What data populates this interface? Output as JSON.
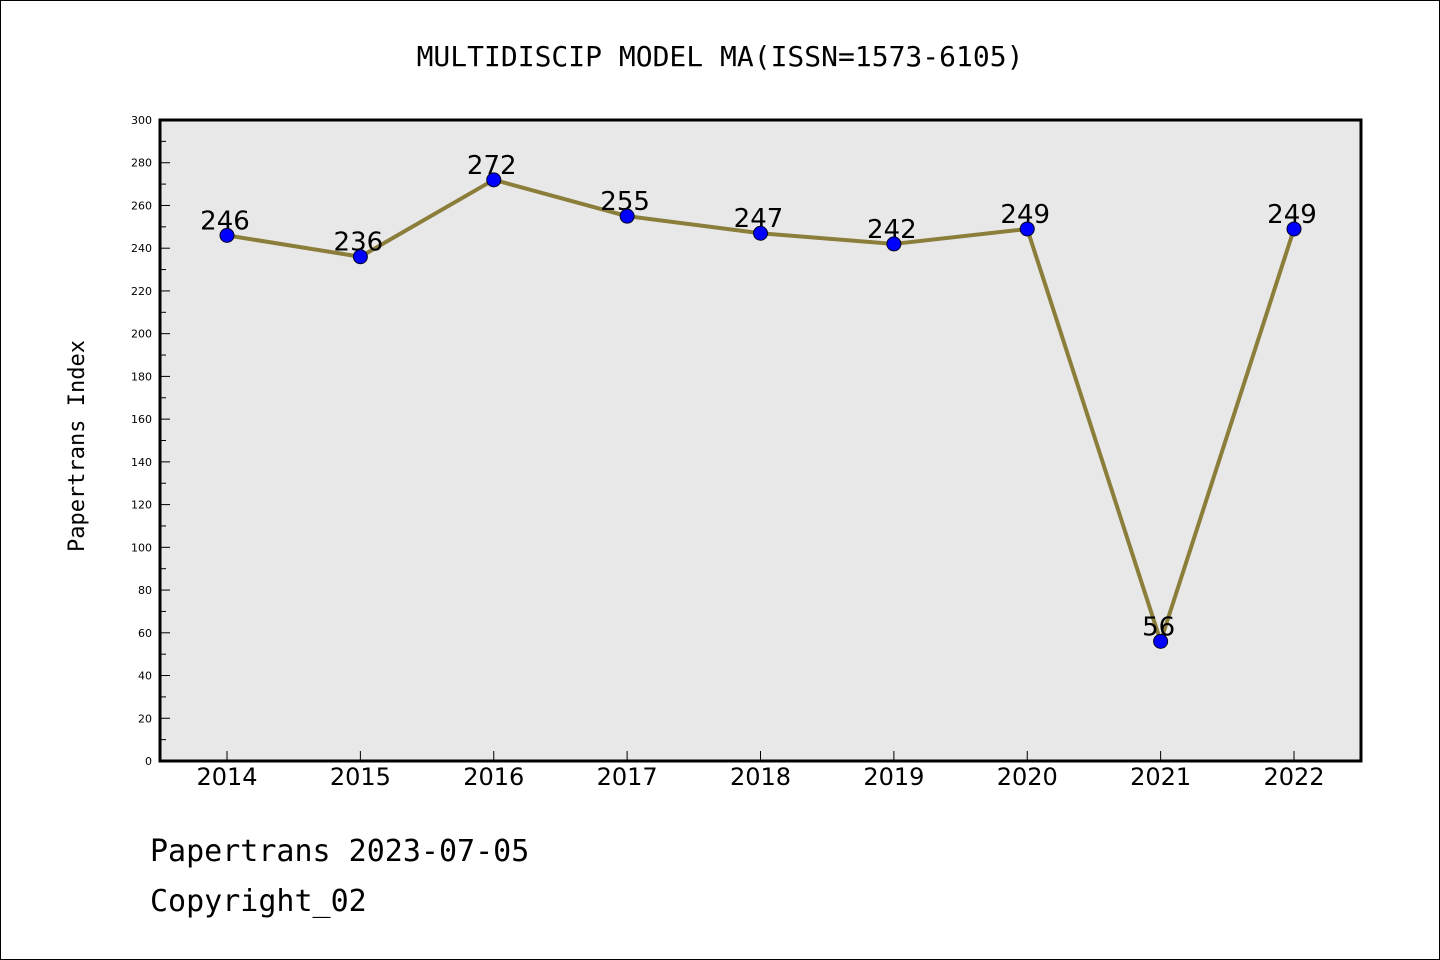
{
  "chart_data": {
    "type": "line",
    "title": "MULTIDISCIP MODEL MA(ISSN=1573-6105)",
    "xlabel": "",
    "ylabel": "Papertrans Index",
    "categories": [
      "2014",
      "2015",
      "2016",
      "2017",
      "2018",
      "2019",
      "2020",
      "2021",
      "2022"
    ],
    "series": [
      {
        "values": [
          246,
          236,
          272,
          255,
          247,
          242,
          249,
          56,
          249
        ],
        "data_labels": [
          "246",
          "236",
          "272",
          "255",
          "247",
          "242",
          "249",
          "56",
          "249"
        ]
      }
    ],
    "ylim": [
      0,
      300
    ],
    "yticks": [
      "0",
      "20",
      "40",
      "60",
      "80",
      "100",
      "120",
      "140",
      "160",
      "180",
      "200",
      "220",
      "240",
      "260",
      "280",
      "300"
    ],
    "grid": false,
    "legend": "none",
    "colors": {
      "line": "#8b7d3a",
      "marker": "#0000ff",
      "plot_background": "#e8e8e8"
    }
  },
  "footer": {
    "line1": "Papertrans 2023-07-05",
    "line2": "Copyright_02"
  }
}
